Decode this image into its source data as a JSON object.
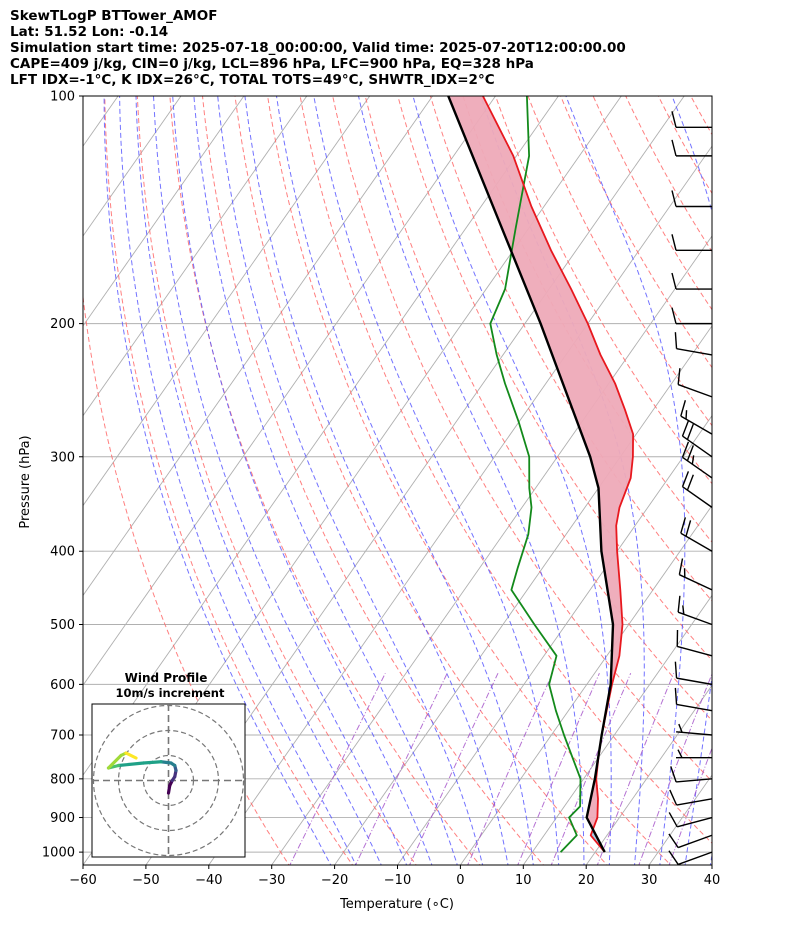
{
  "header": {
    "line1": "SkewTLogP BTTower_AMOF",
    "line2": "Lat: 51.52   Lon: -0.14",
    "line3": "Simulation start time: 2025-07-18_00:00:00, Valid time: 2025-07-20T12:00:00.00",
    "line4": "CAPE=409 j/kg, CIN=0 j/kg, LCL=896 hPa, LFC=900 hPa, EQ=328 hPa",
    "line5": "LFT IDX=-1°C, K IDX=26°C, TOTAL TOTS=49°C, SHWTR_IDX=2°C"
  },
  "colors": {
    "temperature": "#e8181e",
    "dewpoint": "#138a1b",
    "parcel": "#000000",
    "cape_fill": "#a3c8e0",
    "cin_fill": "#eeaab8",
    "dry_adiabat": "#ff6a6a",
    "moist_adiabat": "#5a5aff",
    "mixing_ratio": "#a24fc8"
  },
  "chart_data": {
    "type": "skewt",
    "xlabel": "Temperature (∘C)",
    "ylabel": "Pressure (hPa)",
    "xlim": [
      -60,
      40
    ],
    "ylim": [
      1040,
      100
    ],
    "x_ticks": [
      "−60",
      "−50",
      "−40",
      "−30",
      "−20",
      "−10",
      "0",
      "10",
      "20",
      "30",
      "40"
    ],
    "y_ticks": [
      "100",
      "200",
      "300",
      "400",
      "500",
      "600",
      "700",
      "800",
      "900",
      "1000"
    ],
    "series": [
      {
        "name": "Temperature",
        "points": [
          [
            1000,
            21.5
          ],
          [
            950,
            17.4
          ],
          [
            900,
            16.5
          ],
          [
            850,
            14.5
          ],
          [
            800,
            12.0
          ],
          [
            750,
            10.0
          ],
          [
            700,
            8.0
          ],
          [
            600,
            4.0
          ],
          [
            550,
            2.0
          ],
          [
            500,
            -1.0
          ],
          [
            450,
            -5.2
          ],
          [
            400,
            -10.0
          ],
          [
            370,
            -13.0
          ],
          [
            350,
            -14.5
          ],
          [
            320,
            -16.0
          ],
          [
            300,
            -18.0
          ],
          [
            280,
            -20.5
          ],
          [
            260,
            -24.5
          ],
          [
            240,
            -29.0
          ],
          [
            220,
            -34.5
          ],
          [
            200,
            -40.0
          ],
          [
            180,
            -46.5
          ],
          [
            160,
            -54.0
          ],
          [
            140,
            -62.0
          ],
          [
            120,
            -70.5
          ],
          [
            100,
            -82.0
          ]
        ]
      },
      {
        "name": "Dewpoint",
        "points": [
          [
            1000,
            14.5
          ],
          [
            950,
            15.2
          ],
          [
            900,
            12.0
          ],
          [
            870,
            12.5
          ],
          [
            800,
            9.5
          ],
          [
            700,
            2.0
          ],
          [
            650,
            -2.0
          ],
          [
            600,
            -6.0
          ],
          [
            550,
            -8.0
          ],
          [
            500,
            -15.0
          ],
          [
            450,
            -22.5
          ],
          [
            420,
            -24.0
          ],
          [
            380,
            -26.0
          ],
          [
            350,
            -28.5
          ],
          [
            330,
            -31.0
          ],
          [
            300,
            -34.5
          ],
          [
            270,
            -40.0
          ],
          [
            240,
            -46.5
          ],
          [
            220,
            -51.0
          ],
          [
            200,
            -55.5
          ],
          [
            180,
            -57.0
          ],
          [
            150,
            -62.0
          ],
          [
            120,
            -68.0
          ],
          [
            100,
            -75.0
          ]
        ]
      },
      {
        "name": "Parcel",
        "points": [
          [
            1000,
            21.5
          ],
          [
            900,
            14.8
          ],
          [
            800,
            11.8
          ],
          [
            700,
            8.0
          ],
          [
            600,
            3.8
          ],
          [
            500,
            -2.5
          ],
          [
            400,
            -12.5
          ],
          [
            330,
            -20.0
          ],
          [
            300,
            -24.8
          ],
          [
            200,
            -47.5
          ],
          [
            100,
            -87.5
          ]
        ]
      }
    ],
    "wind_barbs": [
      {
        "p": 1000,
        "speed_kt": 10,
        "dir_deg": 250
      },
      {
        "p": 950,
        "speed_kt": 10,
        "dir_deg": 250
      },
      {
        "p": 900,
        "speed_kt": 10,
        "dir_deg": 255
      },
      {
        "p": 850,
        "speed_kt": 10,
        "dir_deg": 260
      },
      {
        "p": 800,
        "speed_kt": 10,
        "dir_deg": 265
      },
      {
        "p": 750,
        "speed_kt": 5,
        "dir_deg": 270
      },
      {
        "p": 700,
        "speed_kt": 5,
        "dir_deg": 275
      },
      {
        "p": 650,
        "speed_kt": 10,
        "dir_deg": 280
      },
      {
        "p": 600,
        "speed_kt": 10,
        "dir_deg": 280
      },
      {
        "p": 550,
        "speed_kt": 10,
        "dir_deg": 285
      },
      {
        "p": 500,
        "speed_kt": 15,
        "dir_deg": 290
      },
      {
        "p": 450,
        "speed_kt": 15,
        "dir_deg": 295
      },
      {
        "p": 400,
        "speed_kt": 20,
        "dir_deg": 300
      },
      {
        "p": 350,
        "speed_kt": 20,
        "dir_deg": 305
      },
      {
        "p": 320,
        "speed_kt": 25,
        "dir_deg": 305
      },
      {
        "p": 300,
        "speed_kt": 20,
        "dir_deg": 305
      },
      {
        "p": 280,
        "speed_kt": 15,
        "dir_deg": 300
      },
      {
        "p": 250,
        "speed_kt": 10,
        "dir_deg": 290
      },
      {
        "p": 220,
        "speed_kt": 10,
        "dir_deg": 280
      },
      {
        "p": 200,
        "speed_kt": 10,
        "dir_deg": 270
      },
      {
        "p": 180,
        "speed_kt": 10,
        "dir_deg": 270
      },
      {
        "p": 160,
        "speed_kt": 10,
        "dir_deg": 270
      },
      {
        "p": 140,
        "speed_kt": 10,
        "dir_deg": 270
      },
      {
        "p": 120,
        "speed_kt": 10,
        "dir_deg": 270
      },
      {
        "p": 110,
        "speed_kt": 10,
        "dir_deg": 270
      }
    ],
    "inset": {
      "title": "Wind Profile",
      "subtitle": "10m/s increment",
      "rings_ms": [
        10,
        20,
        30
      ],
      "hodograph_uv": [
        [
          0,
          -5
        ],
        [
          0.5,
          -2
        ],
        [
          1.5,
          0
        ],
        [
          2.5,
          1.5
        ],
        [
          3,
          4
        ],
        [
          2.5,
          6
        ],
        [
          1,
          7
        ],
        [
          -3,
          7.5
        ],
        [
          -10,
          7
        ],
        [
          -20,
          6
        ],
        [
          -24,
          5
        ],
        [
          -19,
          10
        ],
        [
          -17,
          11
        ],
        [
          -13,
          9
        ]
      ]
    }
  }
}
